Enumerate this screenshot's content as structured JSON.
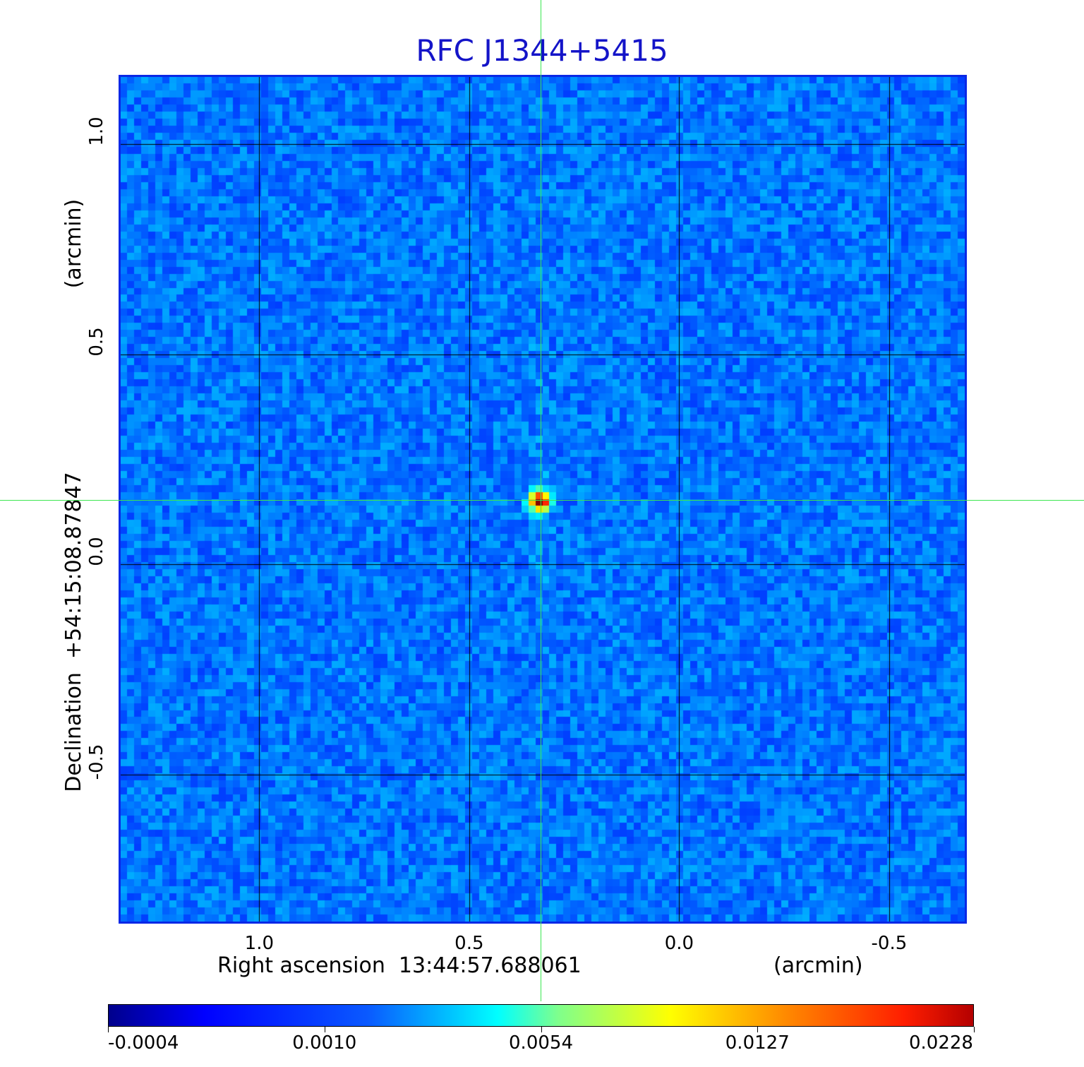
{
  "chart_data": {
    "type": "heatmap",
    "title": "RFC J1344+5415",
    "xlabel": "Right ascension  13:44:57.688061",
    "xunit": "(arcmin)",
    "ylabel": "Declination  +54:15:08.87847",
    "yunit": "(arcmin)",
    "x_ticks": [
      "1.0",
      "0.5",
      "0.0",
      "-0.5"
    ],
    "x_tick_values": [
      1.0,
      0.5,
      0.0,
      -0.5
    ],
    "y_ticks": [
      "1.0",
      "0.5",
      "0.0",
      "-0.5"
    ],
    "y_tick_values": [
      1.0,
      0.5,
      0.0,
      -0.5
    ],
    "xlim": [
      1.33,
      -0.68
    ],
    "ylim": [
      -0.85,
      1.16
    ],
    "grid": true,
    "source_peak": {
      "x": 0.33,
      "y": 0.15
    },
    "colorbar": {
      "ticks": [
        "-0.0004",
        "0.0010",
        "0.0054",
        "0.0127",
        "0.0228"
      ],
      "min": -0.0004,
      "max": 0.0228,
      "colormap": "jet"
    },
    "colors": {
      "title": "#1414c8",
      "crosshair": "#3ce650",
      "frame": "#0a28e6",
      "grid": "#000000"
    }
  }
}
